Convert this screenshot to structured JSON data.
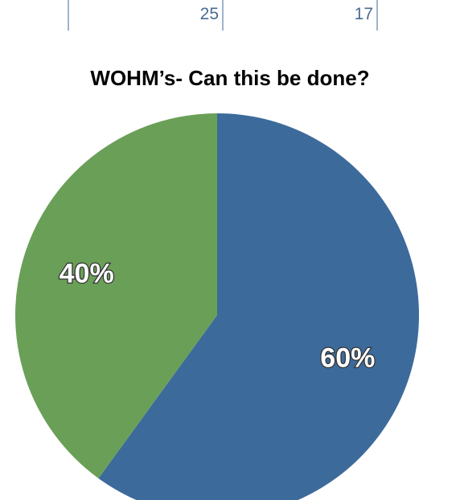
{
  "table_fragment": {
    "cells": [
      "25",
      "17"
    ]
  },
  "chart_data": {
    "type": "pie",
    "title": "WOHM’s- Can this be done?",
    "slices": [
      {
        "label": "60%",
        "value": 60,
        "color": "#3c6a9b"
      },
      {
        "label": "40%",
        "value": 40,
        "color": "#6a9f58"
      }
    ]
  }
}
